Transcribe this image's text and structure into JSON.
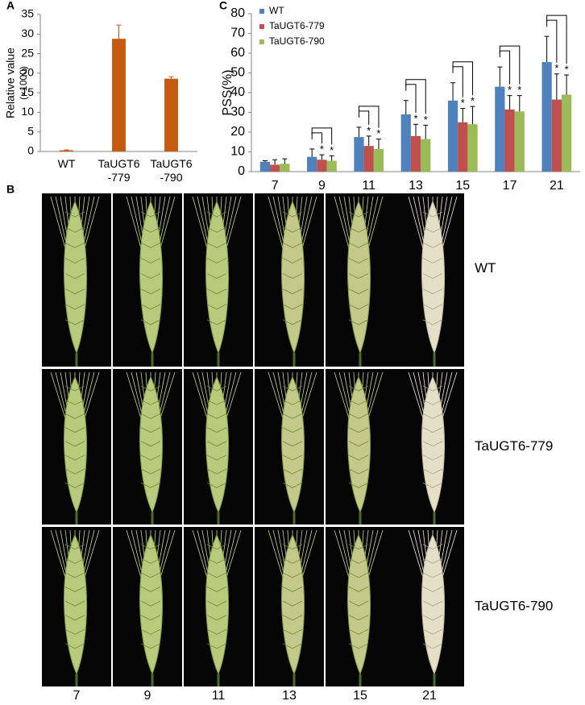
{
  "chart_data": [
    {
      "type": "bar",
      "panel_label": "A",
      "ylabel": "Relative value",
      "ylabel_unit": "(×1000)",
      "categories": [
        [
          "WT"
        ],
        [
          "TaUGT6",
          "-779"
        ],
        [
          "TaUGT6",
          "-790"
        ]
      ],
      "values": [
        0.3,
        28.8,
        18.6
      ],
      "errors": [
        0.1,
        3.5,
        0.5
      ],
      "color": "#c55a11",
      "ylim": [
        0,
        35
      ],
      "yticks": [
        0,
        5,
        10,
        15,
        20,
        25,
        30,
        35
      ]
    },
    {
      "type": "bar",
      "panel_label": "C",
      "ylabel": "PSS(%)",
      "legend": "top-left",
      "significance_label": "*",
      "categories": [
        "7",
        "9",
        "11",
        "13",
        "15",
        "17",
        "21"
      ],
      "series": [
        {
          "name": "WT",
          "color": "#4f81bd",
          "values": [
            5,
            7.5,
            17.5,
            29,
            36,
            43,
            55.5
          ],
          "errors": [
            0.5,
            4,
            5,
            7,
            9,
            10,
            13
          ]
        },
        {
          "name": "TaUGT6-779",
          "color": "#c0504d",
          "values": [
            3.5,
            6,
            13,
            18,
            25,
            31.5,
            36.5
          ],
          "errors": [
            2.5,
            2.5,
            5,
            6,
            7,
            7,
            13
          ],
          "significant": [
            false,
            true,
            true,
            true,
            true,
            true,
            true
          ]
        },
        {
          "name": "TaUGT6-790",
          "color": "#9bbb59",
          "values": [
            4,
            5.5,
            11.5,
            16.5,
            24,
            30.5,
            39
          ],
          "errors": [
            2.5,
            2.5,
            5,
            7,
            9,
            8,
            10
          ],
          "significant": [
            false,
            true,
            true,
            true,
            true,
            true,
            true
          ]
        }
      ],
      "ylim": [
        0,
        80
      ],
      "yticks": [
        0,
        10,
        20,
        30,
        40,
        50,
        60,
        70,
        80
      ]
    }
  ],
  "panel_b": {
    "label": "B",
    "rows": [
      "WT",
      "TaUGT6-779",
      "TaUGT6-790"
    ],
    "columns": [
      "7",
      "9",
      "11",
      "13",
      "15",
      "21"
    ]
  }
}
